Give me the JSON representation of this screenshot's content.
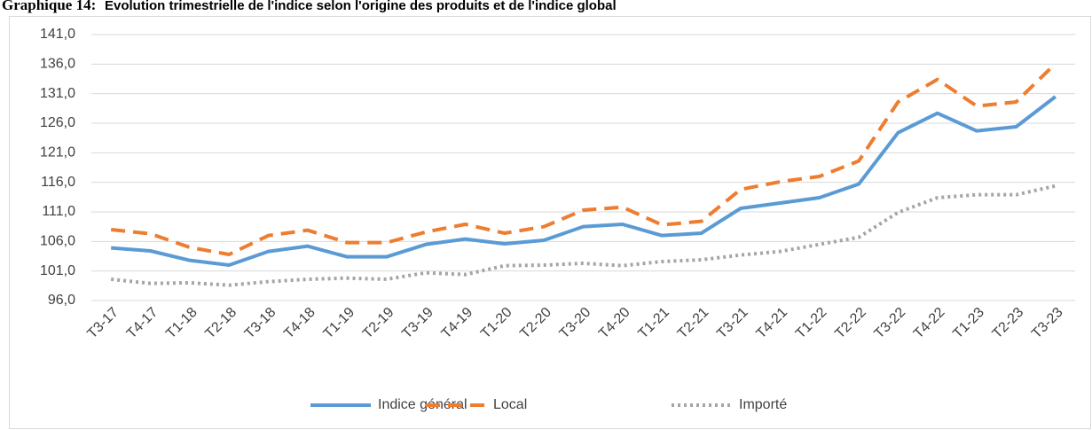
{
  "chart_data": {
    "type": "line",
    "label": "Graphique 14:",
    "title": "Evolution trimestrielle de l'indice selon l'origine des produits et de l'indice global",
    "categories": [
      "T3-17",
      "T4-17",
      "T1-18",
      "T2-18",
      "T3-18",
      "T4-18",
      "T1-19",
      "T2-19",
      "T3-19",
      "T4-19",
      "T1-20",
      "T2-20",
      "T3-20",
      "T4-20",
      "T1-21",
      "T2-21",
      "T3-21",
      "T4-21",
      "T1-22",
      "T2-22",
      "T3-22",
      "T4-22",
      "T1-23",
      "T2-23",
      "T3-23"
    ],
    "series": [
      {
        "name": "Indice général",
        "color": "#5b9bd5",
        "line_style": "solid",
        "values": [
          104.9,
          104.4,
          102.8,
          102.0,
          104.3,
          105.2,
          103.4,
          103.4,
          105.5,
          106.4,
          105.6,
          106.2,
          108.5,
          108.9,
          107.0,
          107.4,
          111.6,
          112.5,
          113.4,
          115.7,
          124.4,
          127.7,
          124.7,
          125.4,
          130.5
        ]
      },
      {
        "name": "Local",
        "color": "#ed7d31",
        "line_style": "dashed",
        "values": [
          108.0,
          107.3,
          105.0,
          103.8,
          107.0,
          107.9,
          105.8,
          105.8,
          107.6,
          108.9,
          107.4,
          108.5,
          111.3,
          111.8,
          108.8,
          109.4,
          114.8,
          116.1,
          117.0,
          119.6,
          129.6,
          133.4,
          128.9,
          129.6,
          136.1
        ]
      },
      {
        "name": "Importé",
        "color": "#a5a5a5",
        "line_style": "dotted",
        "values": [
          99.6,
          98.9,
          99.0,
          98.6,
          99.2,
          99.6,
          99.8,
          99.6,
          100.7,
          100.4,
          101.9,
          102.0,
          102.3,
          101.9,
          102.6,
          102.9,
          103.7,
          104.3,
          105.5,
          106.7,
          110.9,
          113.4,
          113.9,
          113.9,
          115.4
        ]
      }
    ],
    "ylim": [
      96,
      141
    ],
    "yticks": [
      {
        "value": 96,
        "label": "96,0"
      },
      {
        "value": 101,
        "label": "101,0"
      },
      {
        "value": 106,
        "label": "106,0"
      },
      {
        "value": 111,
        "label": "111,0"
      },
      {
        "value": 116,
        "label": "116,0"
      },
      {
        "value": 121,
        "label": "121,0"
      },
      {
        "value": 126,
        "label": "126,0"
      },
      {
        "value": 131,
        "label": "131,0"
      },
      {
        "value": 136,
        "label": "136,0"
      },
      {
        "value": 141,
        "label": "141,0"
      }
    ],
    "grid": true,
    "legend": "bottom"
  }
}
